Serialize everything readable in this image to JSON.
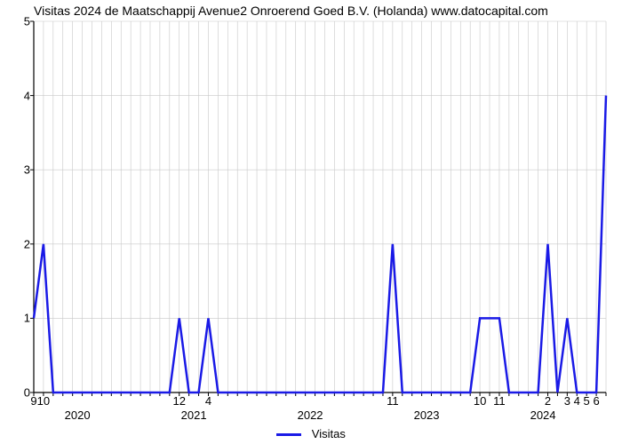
{
  "title": "Visitas 2024 de Maatschappij Avenue2 Onroerend Goed B.V. (Holanda) www.datocapital.com",
  "legend": {
    "label": "Visitas",
    "color": "#1a1ae6"
  },
  "chart": {
    "type": "line",
    "background_color": "#ffffff",
    "axis_color": "#000000",
    "grid_color": "#c8c8c8",
    "line_color": "#1a1ae6",
    "line_width": 2.5,
    "ylim": [
      0,
      5
    ],
    "yticks": [
      0,
      1,
      2,
      3,
      4,
      5
    ],
    "xlim": [
      0,
      59
    ],
    "vgrid_every": 1,
    "title_fontsize": 14,
    "tick_fontsize": 13,
    "x_year_labels": [
      {
        "x": 4.5,
        "label": "2020"
      },
      {
        "x": 16.5,
        "label": "2021"
      },
      {
        "x": 28.5,
        "label": "2022"
      },
      {
        "x": 40.5,
        "label": "2023"
      },
      {
        "x": 52.5,
        "label": "2024"
      }
    ],
    "x_tick_labels": [
      {
        "x": 0,
        "label": "9"
      },
      {
        "x": 1,
        "label": "10"
      },
      {
        "x": 15,
        "label": "12"
      },
      {
        "x": 18,
        "label": "4"
      },
      {
        "x": 37,
        "label": "11"
      },
      {
        "x": 46,
        "label": "10"
      },
      {
        "x": 48,
        "label": "11"
      },
      {
        "x": 53,
        "label": "2"
      },
      {
        "x": 55,
        "label": "3"
      },
      {
        "x": 56,
        "label": "4"
      },
      {
        "x": 57,
        "label": "5"
      },
      {
        "x": 58,
        "label": "6"
      }
    ],
    "values": [
      1,
      2,
      0,
      0,
      0,
      0,
      0,
      0,
      0,
      0,
      0,
      0,
      0,
      0,
      0,
      1,
      0,
      0,
      1,
      0,
      0,
      0,
      0,
      0,
      0,
      0,
      0,
      0,
      0,
      0,
      0,
      0,
      0,
      0,
      0,
      0,
      0,
      2,
      0,
      0,
      0,
      0,
      0,
      0,
      0,
      0,
      1,
      1,
      1,
      0,
      0,
      0,
      0,
      2,
      0,
      1,
      0,
      0,
      0,
      4
    ]
  }
}
